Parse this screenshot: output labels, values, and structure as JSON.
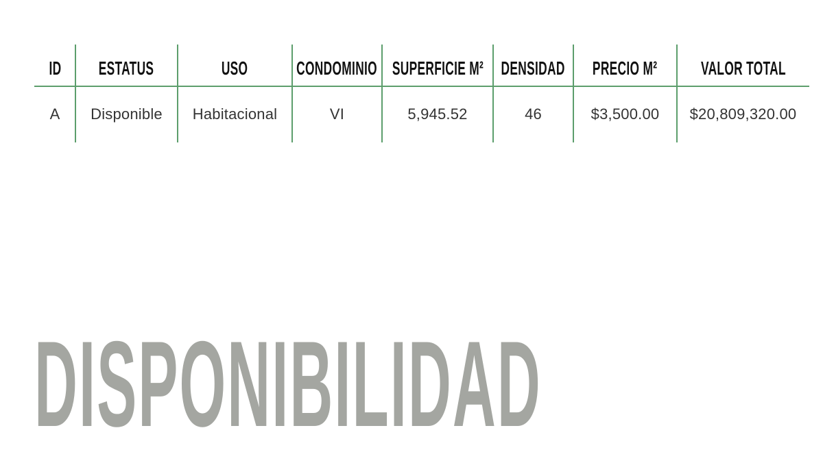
{
  "table": {
    "headers": [
      "ID",
      "ESTATUS",
      "USO",
      "CONDOMINIO",
      "SUPERFICIE M²",
      "DENSIDAD",
      "PRECIO M²",
      "VALOR TOTAL"
    ],
    "rows": [
      [
        "A",
        "Disponible",
        "Habitacional",
        "VI",
        "5,945.52",
        "46",
        "$3,500.00",
        "$20,809,320.00"
      ]
    ]
  },
  "title": "DISPONIBILIDAD",
  "colors": {
    "rule": "#5c9e6c",
    "title": "#a4a6a1"
  }
}
